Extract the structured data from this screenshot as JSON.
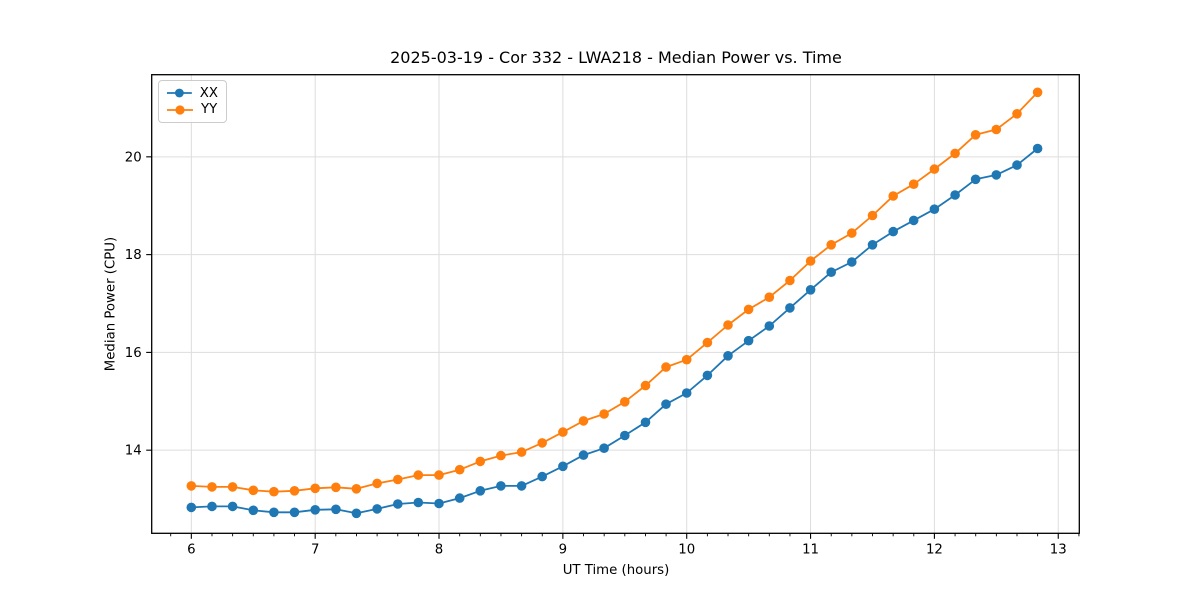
{
  "chart_data": {
    "type": "line",
    "title": "2025-03-19 - Cor 332 - LWA218 - Median Power vs. Time",
    "xlabel": "UT Time (hours)",
    "ylabel": "Median Power (CPU)",
    "xlim": [
      5.68,
      13.17
    ],
    "ylim": [
      12.3,
      21.68
    ],
    "x_ticks": [
      6,
      7,
      8,
      9,
      10,
      11,
      12,
      13
    ],
    "x_tick_labels": [
      "6",
      "7",
      "8",
      "9",
      "10",
      "11",
      "12",
      "13"
    ],
    "y_ticks": [
      14,
      16,
      18,
      20
    ],
    "y_tick_labels": [
      "14",
      "16",
      "18",
      "20"
    ],
    "x_minor_step": 0.16667,
    "grid": true,
    "grid_color": "#dddddd",
    "legend_position": "upper left",
    "x": [
      6.0,
      6.167,
      6.333,
      6.5,
      6.667,
      6.833,
      7.0,
      7.167,
      7.333,
      7.5,
      7.667,
      7.833,
      8.0,
      8.167,
      8.333,
      8.5,
      8.667,
      8.833,
      9.0,
      9.167,
      9.333,
      9.5,
      9.667,
      9.833,
      10.0,
      10.167,
      10.333,
      10.5,
      10.667,
      10.833,
      11.0,
      11.167,
      11.333,
      11.5,
      11.667,
      11.833,
      12.0,
      12.167,
      12.333,
      12.5,
      12.667,
      12.833
    ],
    "series": [
      {
        "name": "XX",
        "color": "#1f77b4",
        "values": [
          12.83,
          12.85,
          12.85,
          12.77,
          12.73,
          12.73,
          12.78,
          12.79,
          12.71,
          12.8,
          12.9,
          12.93,
          12.91,
          13.02,
          13.17,
          13.27,
          13.27,
          13.46,
          13.67,
          13.9,
          14.04,
          14.3,
          14.57,
          14.94,
          15.17,
          15.53,
          15.93,
          16.24,
          16.54,
          16.91,
          17.28,
          17.64,
          17.85,
          18.2,
          18.47,
          18.7,
          18.93,
          19.22,
          19.54,
          19.63,
          19.83,
          20.17
        ]
      },
      {
        "name": "YY",
        "color": "#ff7f0e",
        "values": [
          13.27,
          13.25,
          13.25,
          13.18,
          13.15,
          13.17,
          13.22,
          13.24,
          13.21,
          13.32,
          13.4,
          13.49,
          13.49,
          13.6,
          13.77,
          13.89,
          13.96,
          14.15,
          14.37,
          14.6,
          14.74,
          14.99,
          15.32,
          15.7,
          15.85,
          16.2,
          16.56,
          16.88,
          17.13,
          17.47,
          17.87,
          18.2,
          18.44,
          18.8,
          19.2,
          19.44,
          19.75,
          20.07,
          20.45,
          20.56,
          20.88,
          21.32
        ]
      }
    ]
  }
}
